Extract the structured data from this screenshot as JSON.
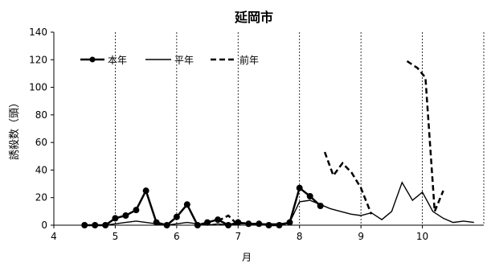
{
  "chart_data": {
    "type": "line",
    "title": "延岡市",
    "xlabel": "月",
    "ylabel": "誘殺数（頭）",
    "ylim": [
      0,
      140
    ],
    "yticks": [
      0,
      20,
      40,
      60,
      80,
      100,
      120,
      140
    ],
    "xlim": [
      4,
      11
    ],
    "xticks": [
      4,
      5,
      6,
      7,
      8,
      9,
      10
    ],
    "xtick_labels": [
      "4",
      "5",
      "6",
      "7",
      "8",
      "9",
      "10"
    ],
    "grid": "vertical dashed lines at month boundaries",
    "legend": {
      "placement": "top-left",
      "entries": [
        "本年",
        "平年",
        "前年"
      ]
    },
    "series": [
      {
        "name": "本年",
        "style": "solid-thick-markers",
        "x": [
          4.5,
          4.67,
          4.84,
          5.0,
          5.17,
          5.34,
          5.5,
          5.67,
          5.84,
          6.0,
          6.17,
          6.34,
          6.5,
          6.67,
          6.84,
          7.0,
          7.17,
          7.34,
          7.5,
          7.67,
          7.84,
          8.0,
          8.17,
          8.34
        ],
        "y": [
          0,
          0,
          0,
          5,
          7,
          11,
          25,
          2,
          0,
          6,
          15,
          0,
          2,
          4,
          0,
          2,
          1,
          1,
          0,
          0,
          2,
          27,
          21,
          14
        ]
      },
      {
        "name": "平年",
        "style": "solid-thin",
        "x": [
          4.5,
          4.67,
          4.84,
          5.0,
          5.17,
          5.34,
          5.5,
          5.67,
          5.84,
          6.0,
          6.17,
          6.34,
          6.5,
          6.67,
          6.84,
          7.0,
          7.17,
          7.34,
          7.5,
          7.67,
          7.84,
          8.0,
          8.17,
          8.34,
          8.5,
          8.67,
          8.84,
          9.0,
          9.17,
          9.34,
          9.5,
          9.67,
          9.84,
          10.0,
          10.17,
          10.34,
          10.5,
          10.67,
          10.84
        ],
        "y": [
          0,
          0,
          0,
          1,
          2,
          3,
          2,
          1,
          0,
          1,
          2,
          1,
          0,
          1,
          0,
          1,
          1,
          1,
          1,
          1,
          2,
          17,
          18,
          15,
          12,
          10,
          8,
          7,
          9,
          4,
          10,
          31,
          18,
          24,
          10,
          5,
          2,
          3,
          2
        ]
      },
      {
        "name": "前年",
        "style": "dashed",
        "segments": [
          {
            "x": [
              6.67,
              6.84,
              7.0
            ],
            "y": [
              3,
              7,
              0
            ]
          },
          {
            "x": [
              8.41,
              8.55,
              8.7,
              8.85,
              9.0,
              9.17
            ],
            "y": [
              53,
              36,
              45,
              38,
              27,
              8
            ]
          },
          {
            "x": [
              9.75,
              9.92,
              10.05,
              10.2,
              10.34
            ],
            "y": [
              119,
              114,
              107,
              10,
              25
            ]
          }
        ]
      }
    ]
  }
}
